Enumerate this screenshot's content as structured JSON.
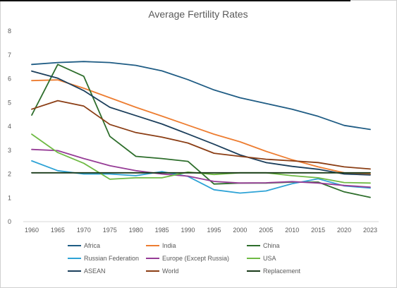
{
  "chart_data": {
    "type": "line",
    "title": "Average Fertility Rates",
    "xlabel": "",
    "ylabel": "",
    "x": [
      "1960",
      "1965",
      "1970",
      "1975",
      "1980",
      "1985",
      "1990",
      "1995",
      "2000",
      "2005",
      "2010",
      "2015",
      "2020",
      "2023"
    ],
    "y_ticks": [
      "0",
      "1",
      "2",
      "3",
      "4",
      "5",
      "6",
      "7",
      "8"
    ],
    "ylim": [
      0,
      8
    ],
    "grid": false,
    "legend_position": "bottom",
    "series": [
      {
        "name": "Africa",
        "color": "#1f5c84",
        "values": [
          6.6,
          6.68,
          6.72,
          6.68,
          6.56,
          6.33,
          5.96,
          5.53,
          5.2,
          4.96,
          4.72,
          4.42,
          4.04,
          3.87
        ]
      },
      {
        "name": "India",
        "color": "#ed7d31",
        "values": [
          5.92,
          5.95,
          5.6,
          5.2,
          4.8,
          4.43,
          4.05,
          3.67,
          3.35,
          2.95,
          2.6,
          2.3,
          2.05,
          2.0
        ]
      },
      {
        "name": "China",
        "color": "#2e6e2c",
        "values": [
          4.47,
          6.6,
          6.1,
          3.58,
          2.74,
          2.65,
          2.53,
          1.58,
          1.62,
          1.62,
          1.66,
          1.66,
          1.25,
          1.02
        ]
      },
      {
        "name": "Russian Federation",
        "color": "#2ea3d6",
        "values": [
          2.55,
          2.14,
          2.0,
          2.0,
          1.93,
          2.1,
          1.9,
          1.34,
          1.2,
          1.29,
          1.59,
          1.8,
          1.5,
          1.41
        ]
      },
      {
        "name": "Europe (Except Russia)",
        "color": "#963c96",
        "values": [
          3.03,
          2.98,
          2.65,
          2.35,
          2.14,
          2.0,
          1.91,
          1.69,
          1.62,
          1.63,
          1.68,
          1.62,
          1.52,
          1.45
        ]
      },
      {
        "name": "USA",
        "color": "#6fba44",
        "values": [
          3.67,
          2.9,
          2.45,
          1.78,
          1.84,
          1.84,
          2.08,
          1.98,
          2.05,
          2.05,
          1.93,
          1.84,
          1.64,
          1.62
        ]
      },
      {
        "name": "ASEAN",
        "color": "#1c3f5c",
        "values": [
          6.32,
          6.02,
          5.5,
          4.8,
          4.45,
          4.1,
          3.68,
          3.25,
          2.8,
          2.48,
          2.32,
          2.2,
          2.0,
          1.96
        ]
      },
      {
        "name": "World",
        "color": "#8b3e15",
        "values": [
          4.72,
          5.08,
          4.85,
          4.08,
          3.74,
          3.55,
          3.3,
          2.87,
          2.74,
          2.62,
          2.55,
          2.48,
          2.3,
          2.21
        ]
      },
      {
        "name": "Replacement",
        "color": "#1a3a1a",
        "values": [
          2.05,
          2.05,
          2.05,
          2.05,
          2.05,
          2.05,
          2.05,
          2.05,
          2.05,
          2.05,
          2.05,
          2.05,
          2.05,
          2.05
        ]
      }
    ]
  }
}
